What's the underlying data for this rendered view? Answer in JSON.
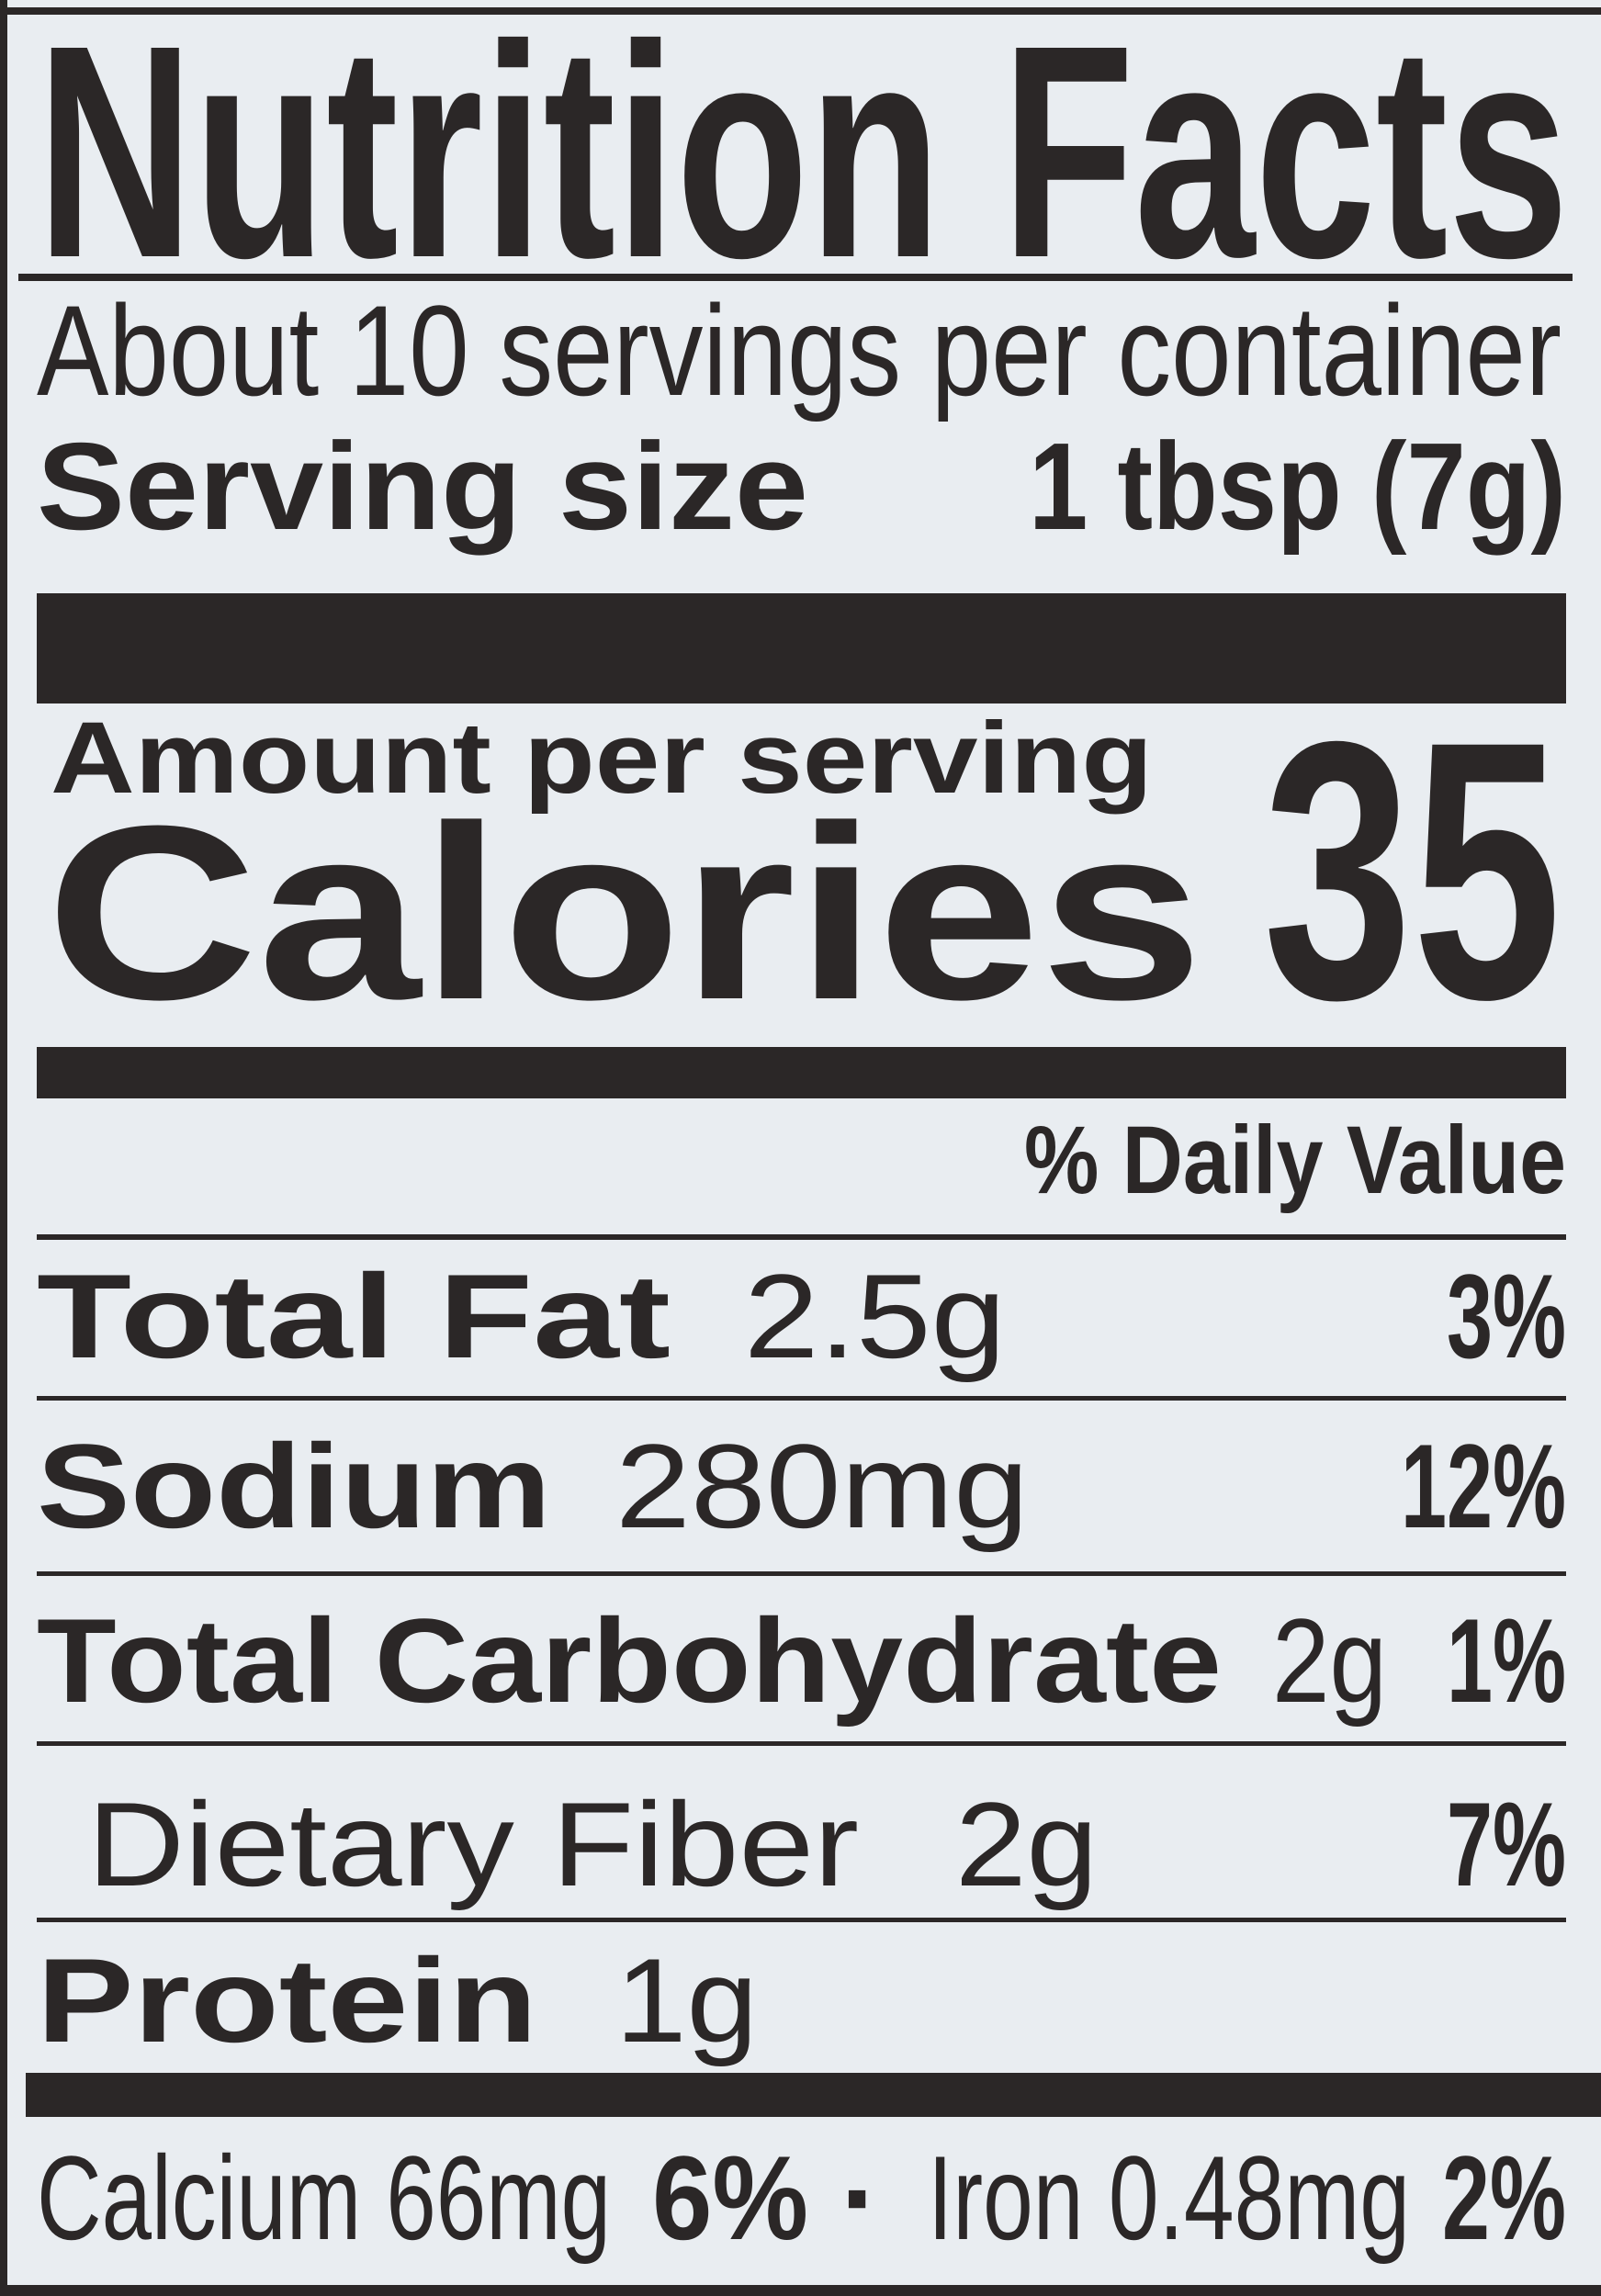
{
  "label": {
    "title": "Nutrition Facts",
    "servings_per_container": "About 10 servings per container",
    "serving_size_label": "Serving size",
    "serving_size_value": "1 tbsp (7g)",
    "amount_per_serving": "Amount per serving",
    "calories_label": "Calories",
    "calories_value": "35",
    "daily_value_header": "% Daily Value",
    "nutrients": [
      {
        "name": "Total Fat",
        "amount": "2.5g",
        "dv": "3%"
      },
      {
        "name": "Sodium",
        "amount": "280mg",
        "dv": "12%"
      },
      {
        "name": "Total Carbohydrate",
        "amount": "2g",
        "dv": "1%"
      },
      {
        "name": "Dietary Fiber",
        "amount": "2g",
        "dv": "7%"
      },
      {
        "name": "Protein",
        "amount": "1g"
      }
    ],
    "minerals": {
      "calcium": "Calcium 66mg",
      "calcium_dv": "6%",
      "separator": "·",
      "iron": "Iron 0.48mg",
      "iron_dv": "2%"
    }
  }
}
